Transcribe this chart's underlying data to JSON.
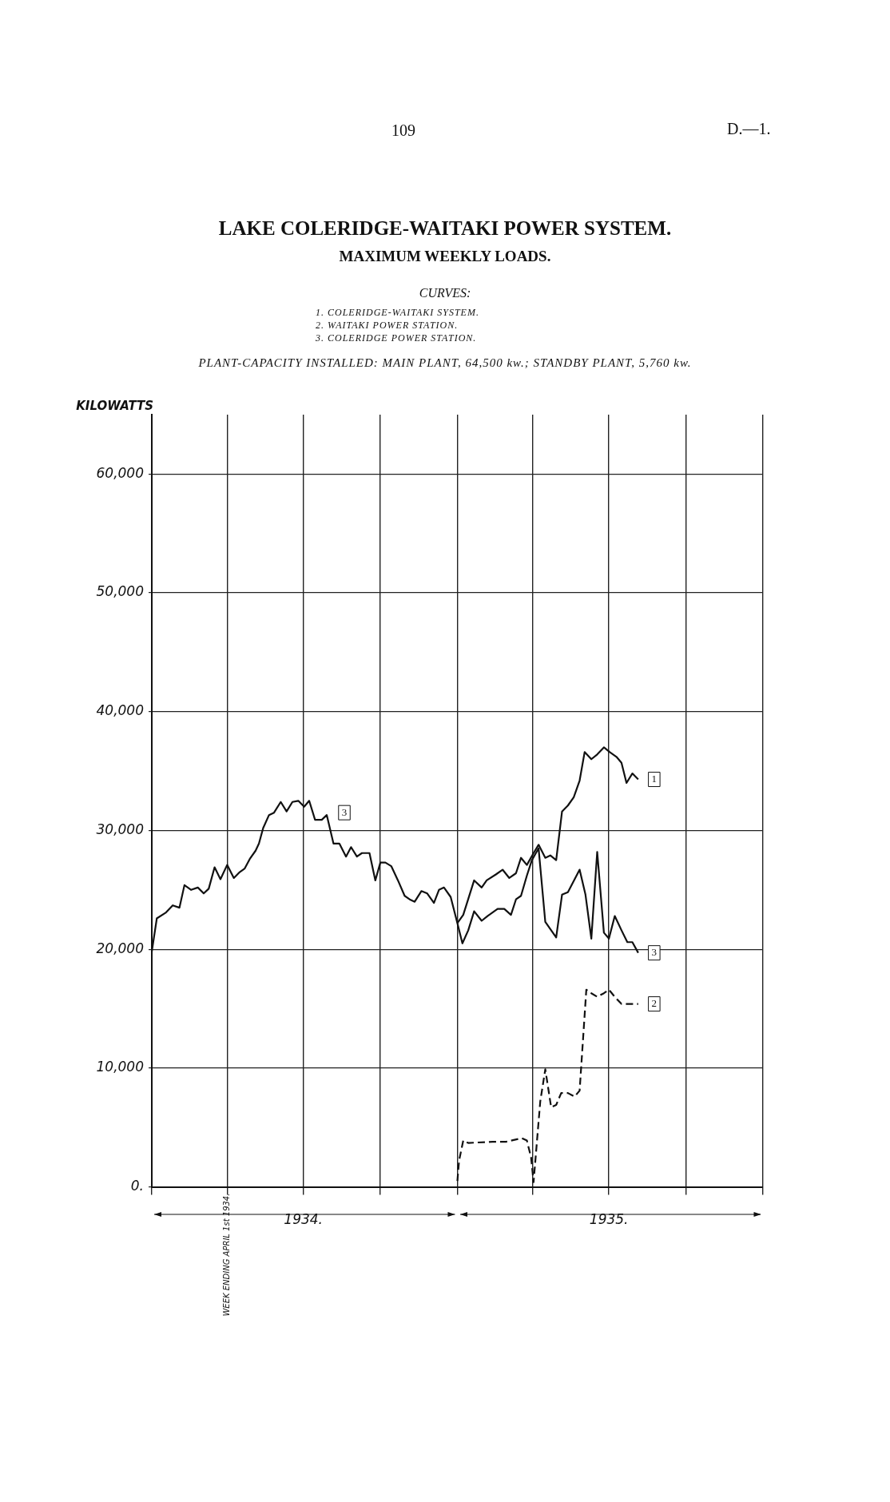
{
  "chart_data": {
    "type": "line",
    "title": "LAKE COLERIDGE-WAITAKI POWER SYSTEM.",
    "subtitle": "MAXIMUM WEEKLY LOADS.",
    "ylabel": "KILOWATTS",
    "annotations": [
      "109",
      "D.—1.",
      "CURVES:",
      "1. COLERIDGE-WAITAKI SYSTEM.",
      "2. WAITAKI POWER STATION.",
      "3. COLERIDGE POWER STATION.",
      "PLANT-CAPACITY INSTALLED: MAIN PLANT, 64,500 kw.; STANDBY PLANT, 5,760 kw.",
      {
        "text": "WEEK ENDING APRIL 1st 1934.",
        "x": "1934-04-01"
      },
      {
        "text": "3",
        "x": "1934-08-19",
        "y": 31500
      }
    ],
    "xlim": [
      "1934-01-01",
      "1936-01-01"
    ],
    "xticks": [
      {
        "value": "1934-01-01",
        "label": null
      },
      {
        "value": "1934-04-01",
        "label": null
      },
      {
        "value": "1934-07-01",
        "label": "1934."
      },
      {
        "value": "1934-10-01",
        "label": null
      },
      {
        "value": "1935-01-01",
        "label": null
      },
      {
        "value": "1935-04-01",
        "label": null
      },
      {
        "value": "1935-07-01",
        "label": "1935."
      },
      {
        "value": "1935-10-01",
        "label": null
      },
      {
        "value": "1936-01-01",
        "label": null
      }
    ],
    "ylim": [
      0,
      65000
    ],
    "yticks": [
      {
        "value": 0,
        "label": "0."
      },
      {
        "value": 10000,
        "label": "10,000"
      },
      {
        "value": 20000,
        "label": "20,000"
      },
      {
        "value": 30000,
        "label": "30,000"
      },
      {
        "value": 40000,
        "label": "40,000"
      },
      {
        "value": 50000,
        "label": "50,000"
      },
      {
        "value": 60000,
        "label": "60,000"
      }
    ],
    "grid": true,
    "legend": false,
    "marker": "none",
    "series": [
      {
        "name": "1",
        "color": "#111111",
        "line_style": "solid",
        "x": [
          "1935-01-01",
          "1935-01-08",
          "1935-01-21",
          "1935-01-30",
          "1935-02-05",
          "1935-02-16",
          "1935-02-24",
          "1935-03-04",
          "1935-03-12",
          "1935-03-18",
          "1935-03-25",
          "1935-04-02",
          "1935-04-08",
          "1935-04-16",
          "1935-04-22",
          "1935-04-29",
          "1935-05-06",
          "1935-05-13",
          "1935-05-20",
          "1935-05-27",
          "1935-06-02",
          "1935-06-10",
          "1935-06-17",
          "1935-06-25",
          "1935-07-02",
          "1935-07-10",
          "1935-07-16",
          "1935-07-22",
          "1935-07-29",
          "1935-08-05"
        ],
        "values": [
          22200,
          22900,
          25800,
          25200,
          25800,
          26300,
          26700,
          26000,
          26400,
          27700,
          27100,
          28100,
          28800,
          27700,
          27900,
          27500,
          31600,
          32100,
          32800,
          34200,
          36600,
          36000,
          36400,
          37000,
          36600,
          36200,
          35700,
          34000,
          34800,
          34300
        ]
      },
      {
        "name": "2",
        "color": "#111111",
        "line_style": "dashed",
        "x": [
          "1935-01-01",
          "1935-01-03",
          "1935-01-08",
          "1935-01-14",
          "1935-02-12",
          "1935-02-28",
          "1935-03-19",
          "1935-03-25",
          "1935-03-30",
          "1935-04-02",
          "1935-04-10",
          "1935-04-16",
          "1935-04-23",
          "1935-04-29",
          "1935-05-05",
          "1935-05-13",
          "1935-05-21",
          "1935-05-27",
          "1935-06-04",
          "1935-06-10",
          "1935-06-17",
          "1935-06-25",
          "1935-07-01",
          "1935-07-08",
          "1935-07-16",
          "1935-08-05"
        ],
        "values": [
          500,
          2200,
          3900,
          3700,
          3800,
          3800,
          4100,
          3900,
          2500,
          400,
          7200,
          9900,
          6700,
          6900,
          7900,
          7900,
          7600,
          8100,
          16600,
          16300,
          16000,
          16300,
          16600,
          16000,
          15400,
          15400
        ]
      },
      {
        "name": "3",
        "color": "#111111",
        "line_style": "solid",
        "x": [
          "1934-01-01",
          "1934-01-07",
          "1934-01-18",
          "1934-01-26",
          "1934-02-03",
          "1934-02-09",
          "1934-02-17",
          "1934-02-25",
          "1934-03-04",
          "1934-03-10",
          "1934-03-17",
          "1934-03-24",
          "1934-04-01",
          "1934-04-09",
          "1934-04-16",
          "1934-04-22",
          "1934-04-28",
          "1934-05-05",
          "1934-05-09",
          "1934-05-14",
          "1934-05-21",
          "1934-05-27",
          "1934-06-04",
          "1934-06-11",
          "1934-06-18",
          "1934-06-25",
          "1934-07-02",
          "1934-07-08",
          "1934-07-15",
          "1934-07-23",
          "1934-07-29",
          "1934-08-06",
          "1934-08-13",
          "1934-08-21",
          "1934-08-27",
          "1934-09-03",
          "1934-09-09",
          "1934-09-18",
          "1934-09-25",
          "1934-10-01",
          "1934-10-07",
          "1934-10-14",
          "1934-10-22",
          "1934-10-30",
          "1934-11-05",
          "1934-11-11",
          "1934-11-19",
          "1934-11-26",
          "1934-12-04",
          "1934-12-10",
          "1934-12-16",
          "1934-12-24",
          "1935-01-01",
          "1935-01-07",
          "1935-01-14",
          "1935-01-21",
          "1935-01-30",
          "1935-02-06",
          "1935-02-18",
          "1935-02-26",
          "1935-03-06",
          "1935-03-12",
          "1935-03-18",
          "1935-03-25",
          "1935-03-31",
          "1935-04-08",
          "1935-04-16",
          "1935-04-29",
          "1935-05-06",
          "1935-05-13",
          "1935-05-27",
          "1935-06-03",
          "1935-06-10",
          "1935-06-17",
          "1935-06-25",
          "1935-07-01",
          "1935-07-08",
          "1935-07-16",
          "1935-07-23",
          "1935-07-29",
          "1935-08-05"
        ],
        "values": [
          19800,
          22600,
          23100,
          23700,
          23500,
          25400,
          25000,
          25200,
          24700,
          25100,
          26900,
          25900,
          27100,
          26000,
          26500,
          26800,
          27600,
          28300,
          28900,
          30200,
          31300,
          31500,
          32400,
          31600,
          32400,
          32500,
          32000,
          32500,
          30900,
          30900,
          31300,
          28900,
          28900,
          27800,
          28600,
          27800,
          28100,
          28100,
          25800,
          27300,
          27300,
          27000,
          25800,
          24500,
          24200,
          24000,
          24900,
          24700,
          23900,
          25000,
          25200,
          24400,
          22200,
          20500,
          21600,
          23200,
          22400,
          22800,
          23400,
          23400,
          22900,
          24200,
          24500,
          26200,
          27500,
          28500,
          22300,
          21000,
          24600,
          24800,
          26700,
          24600,
          20900,
          28200,
          21400,
          20900,
          22800,
          21600,
          20600,
          20600,
          19700
        ]
      }
    ]
  }
}
